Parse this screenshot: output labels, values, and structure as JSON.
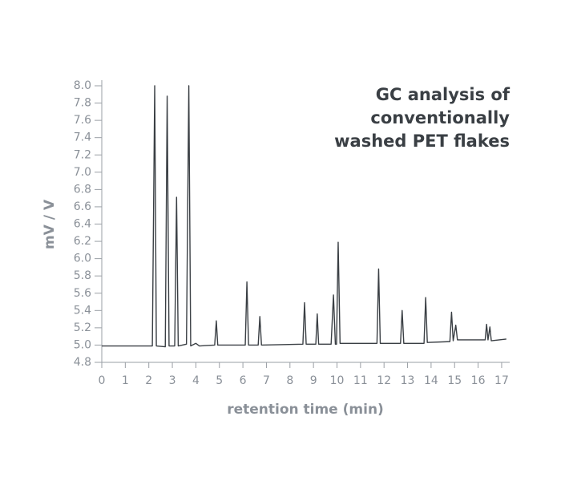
{
  "chart_data": {
    "type": "line",
    "title": "GC analysis of\nconventionally\nwashed PET flakes",
    "x_label": "retention time (min)",
    "y_label": "mV / V",
    "series": [
      {
        "color": "#3a3f44",
        "x": [
          0,
          2.15,
          2.25,
          2.32,
          2.7,
          2.78,
          2.86,
          3.1,
          3.18,
          3.25,
          3.6,
          3.7,
          3.78,
          4.0,
          4.15,
          4.8,
          4.87,
          4.93,
          6.1,
          6.17,
          6.24,
          6.65,
          6.72,
          6.79,
          8.55,
          8.62,
          8.69,
          9.1,
          9.16,
          9.22,
          9.75,
          9.85,
          9.93,
          9.98,
          10.05,
          10.13,
          11.7,
          11.77,
          11.84,
          12.7,
          12.77,
          12.84,
          13.7,
          13.77,
          13.84,
          14.8,
          14.87,
          14.94,
          15.05,
          15.12,
          16.3,
          16.36,
          16.42,
          16.5,
          16.56,
          17.2
        ],
        "values": [
          4.99,
          4.99,
          8.0,
          4.99,
          4.98,
          7.88,
          4.99,
          4.99,
          6.71,
          4.99,
          5.01,
          8.0,
          4.99,
          5.02,
          4.99,
          5.0,
          5.28,
          5.0,
          5.0,
          5.73,
          5.0,
          5.0,
          5.33,
          5.0,
          5.01,
          5.49,
          5.01,
          5.01,
          5.36,
          5.01,
          5.01,
          5.58,
          5.01,
          5.01,
          6.19,
          5.02,
          5.02,
          5.88,
          5.02,
          5.02,
          5.4,
          5.02,
          5.02,
          5.55,
          5.03,
          5.04,
          5.38,
          5.05,
          5.23,
          5.06,
          5.06,
          5.24,
          5.06,
          5.21,
          5.05,
          5.07
        ]
      }
    ],
    "xlim": [
      0,
      17.3
    ],
    "xticks": [
      0,
      1,
      2,
      3,
      4,
      5,
      6,
      7,
      8,
      9,
      10,
      11,
      12,
      13,
      14,
      15,
      16,
      17
    ],
    "ylim": [
      4.8,
      8.0
    ],
    "yticks": [
      4.8,
      {
        "value": 5,
        "label": "5.0"
      },
      5.2,
      5.4,
      5.6,
      5.8,
      {
        "value": 6,
        "label": "6.0"
      },
      6.2,
      6.4,
      6.6,
      6.8,
      {
        "value": 7,
        "label": "7.0"
      },
      7.2,
      7.4,
      7.6,
      7.8,
      {
        "value": 8,
        "label": "8.0"
      }
    ]
  }
}
